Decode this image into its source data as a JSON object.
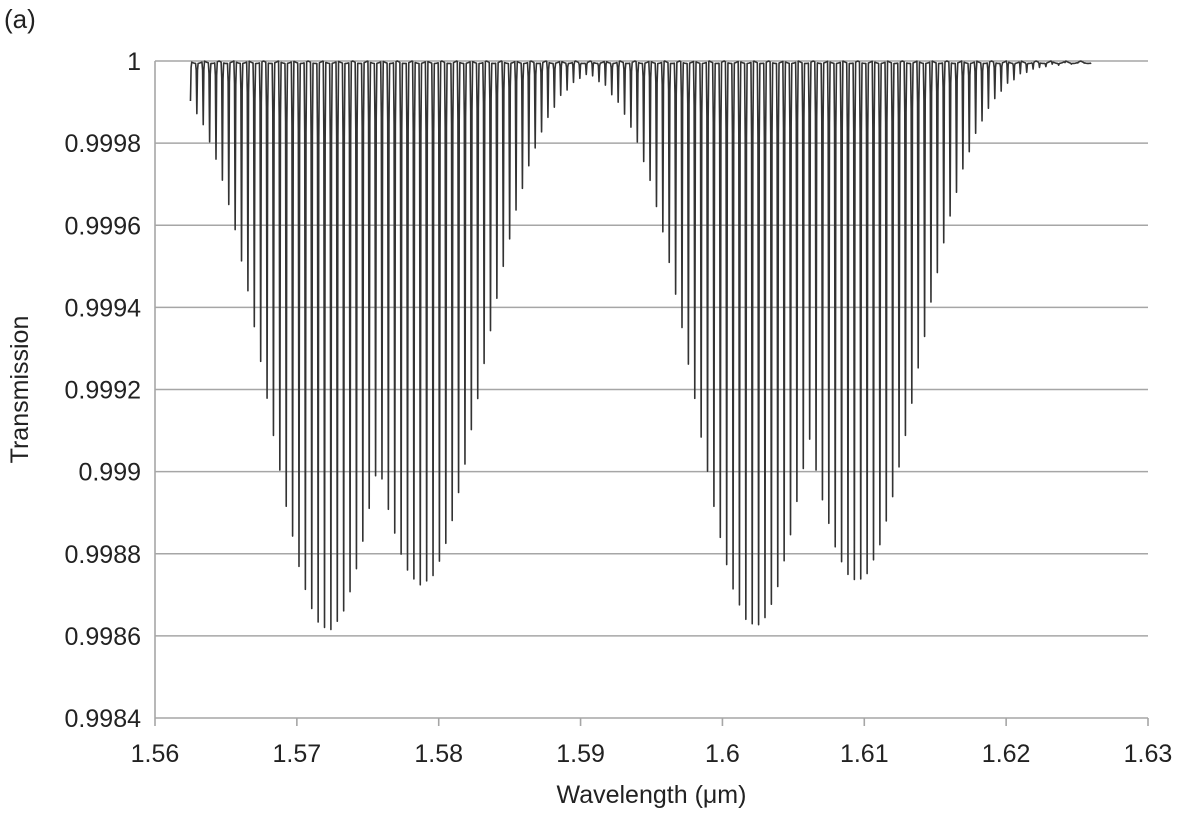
{
  "panel_label": "(a)",
  "chart_data": {
    "type": "line",
    "title": "",
    "xlabel": "Wavelength (μm)",
    "ylabel": "Transmission",
    "xlim": [
      1.56,
      1.63
    ],
    "ylim": [
      0.9984,
      1.0
    ],
    "xticks": [
      1.56,
      1.57,
      1.58,
      1.59,
      1.6,
      1.61,
      1.62,
      1.63
    ],
    "xtick_labels": [
      "1.56",
      "1.57",
      "1.58",
      "1.59",
      "1.6",
      "1.61",
      "1.62",
      "1.63"
    ],
    "yticks": [
      0.9984,
      0.9986,
      0.9988,
      0.999,
      0.9992,
      0.9994,
      0.9996,
      0.9998,
      1.0
    ],
    "ytick_labels": [
      "0.9984",
      "0.9986",
      "0.9988",
      "0.999",
      "0.9992",
      "0.9994",
      "0.9996",
      "0.9998",
      "1"
    ],
    "grid": "horizontal",
    "legend": "none",
    "line_color": "#333333",
    "grid_color": "#a6a6a6",
    "x_range_of_data": [
      1.5625,
      1.626
    ],
    "description_of_series": "Dense comb of sharp resonance dips",
    "dip_envelopes": [
      {
        "center": 1.5722,
        "min_transmission": 0.99862
      },
      {
        "center": 1.5788,
        "min_transmission": 0.99873
      },
      {
        "center": 1.6023,
        "min_transmission": 0.99863
      },
      {
        "center": 1.6095,
        "min_transmission": 0.99874
      }
    ]
  }
}
